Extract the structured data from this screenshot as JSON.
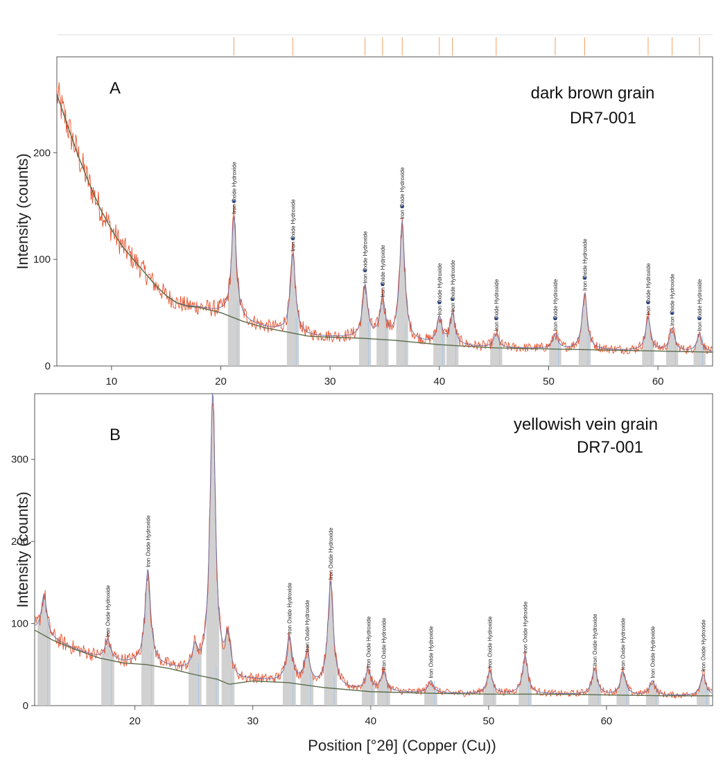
{
  "x_axis_title": "Position [°2θ] (Copper (Cu))",
  "colors": {
    "observed": "#e8502a",
    "calculated": "#6a6fa8",
    "background": "#5a6b4a",
    "stick": "#a8c8e8",
    "peak_fill": "#c9c9c9",
    "marker": "#2d4fa0",
    "top_tick": "#f0a060"
  },
  "chart_data": [
    {
      "type": "line",
      "panel_label": "A",
      "title": "dark brown grain",
      "subtitle": "DR7-001",
      "xlabel": "",
      "ylabel": "Intensity (counts)",
      "xlim": [
        5,
        65
      ],
      "ylim": [
        0,
        290
      ],
      "xticks": [
        10,
        20,
        30,
        40,
        50,
        60
      ],
      "yticks": [
        0,
        100,
        200
      ],
      "grid": false,
      "peaks": [
        {
          "x": 21.2,
          "y": 140,
          "label": "Iron Oxide Hydroxide"
        },
        {
          "x": 26.6,
          "y": 105,
          "label": "Iron Oxide Hydroxide"
        },
        {
          "x": 33.2,
          "y": 75,
          "label": "Iron Oxide Hydroxide"
        },
        {
          "x": 34.8,
          "y": 62,
          "label": "Iron Oxide Hydroxide"
        },
        {
          "x": 36.6,
          "y": 135,
          "label": "Iron Oxide Hydroxide"
        },
        {
          "x": 40.0,
          "y": 45,
          "label": "Iron Oxide Hydroxide"
        },
        {
          "x": 41.2,
          "y": 48,
          "label": "Iron Oxide Hydroxide"
        },
        {
          "x": 45.2,
          "y": 30,
          "label": "Iron Oxide Hydroxide"
        },
        {
          "x": 50.6,
          "y": 30,
          "label": "Iron Oxide Hydroxide"
        },
        {
          "x": 53.3,
          "y": 68,
          "label": "Iron Oxide Hydroxide"
        },
        {
          "x": 59.1,
          "y": 45,
          "label": "Iron Oxide Hydroxide"
        },
        {
          "x": 61.3,
          "y": 35,
          "label": "Iron Oxide Hydroxide"
        },
        {
          "x": 63.8,
          "y": 30,
          "label": "Iron Oxide Hydroxide"
        }
      ],
      "series": [
        {
          "name": "",
          "role": "background",
          "x": [
            5,
            6,
            7,
            8,
            9,
            10,
            11,
            12,
            13,
            14,
            15,
            16,
            17,
            18,
            20,
            22,
            24,
            26,
            28,
            30,
            33,
            36,
            38,
            40,
            45,
            50,
            55,
            60,
            65
          ],
          "y": [
            255,
            225,
            196,
            170,
            147,
            128,
            112,
            100,
            88,
            76,
            66,
            59,
            56,
            55,
            50,
            42,
            36,
            32,
            28,
            27,
            26,
            24,
            22,
            20,
            17,
            16,
            15,
            14,
            13
          ]
        }
      ]
    },
    {
      "type": "line",
      "panel_label": "B",
      "title": "yellowish vein grain",
      "subtitle": "DR7-001",
      "xlabel": "Position [°2θ] (Copper (Cu))",
      "ylabel": "Intensity (counts)",
      "xlim": [
        11.5,
        69
      ],
      "ylim": [
        0,
        380
      ],
      "xticks": [
        20,
        30,
        40,
        50,
        60
      ],
      "yticks": [
        0,
        100,
        200,
        300
      ],
      "grid": false,
      "peaks": [
        {
          "x": 12.3,
          "y": 135,
          "label": ""
        },
        {
          "x": 17.7,
          "y": 80,
          "label": "Iron Oxide Hydroxide"
        },
        {
          "x": 21.1,
          "y": 165,
          "label": "Iron Oxide Hydroxide"
        },
        {
          "x": 25.1,
          "y": 65,
          "label": ""
        },
        {
          "x": 26.6,
          "y": 380,
          "label": ""
        },
        {
          "x": 27.9,
          "y": 78,
          "label": ""
        },
        {
          "x": 33.1,
          "y": 83,
          "label": "Iron Oxide Hydroxide"
        },
        {
          "x": 34.6,
          "y": 62,
          "label": "Iron Oxide Hydroxide"
        },
        {
          "x": 36.6,
          "y": 150,
          "label": "Iron Oxide Hydroxide"
        },
        {
          "x": 39.8,
          "y": 42,
          "label": "Iron Oxide Hydroxide"
        },
        {
          "x": 41.1,
          "y": 40,
          "label": "Iron Oxide Hydroxide"
        },
        {
          "x": 45.1,
          "y": 30,
          "label": "Iron Oxide Hydroxide"
        },
        {
          "x": 50.1,
          "y": 42,
          "label": "Iron Oxide Hydroxide"
        },
        {
          "x": 53.1,
          "y": 60,
          "label": "Iron Oxide Hydroxide"
        },
        {
          "x": 59.0,
          "y": 45,
          "label": "Iron Oxide Hydroxide"
        },
        {
          "x": 61.4,
          "y": 40,
          "label": "Iron Oxide Hydroxide"
        },
        {
          "x": 63.9,
          "y": 30,
          "label": "Iron Oxide Hydroxide"
        },
        {
          "x": 68.2,
          "y": 38,
          "label": "Iron Oxide Hydroxide"
        }
      ],
      "series": [
        {
          "name": "",
          "role": "background",
          "x": [
            11.5,
            13,
            15,
            17,
            19,
            21,
            23,
            25,
            27,
            28,
            30,
            33,
            36,
            40,
            45,
            50,
            55,
            60,
            65,
            69
          ],
          "y": [
            92,
            80,
            68,
            58,
            52,
            50,
            45,
            38,
            32,
            26,
            30,
            28,
            22,
            17,
            15,
            14,
            14,
            13,
            12,
            12
          ]
        }
      ]
    }
  ]
}
